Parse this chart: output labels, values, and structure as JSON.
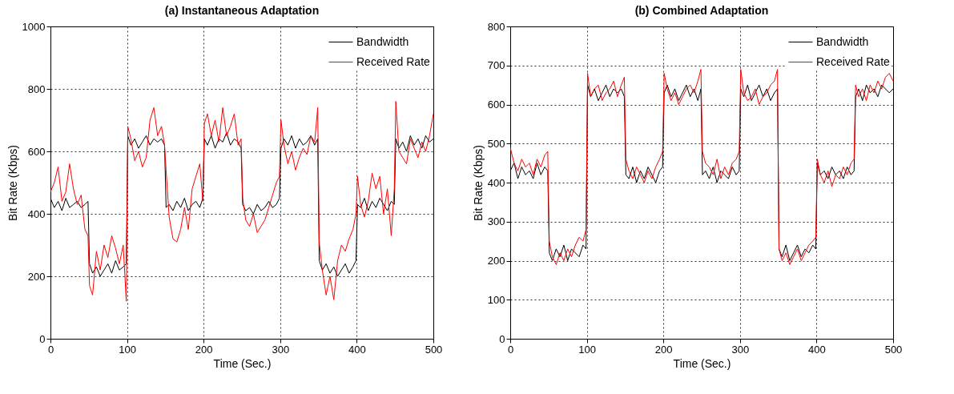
{
  "chart_data": [
    {
      "type": "line",
      "title": "(a) Instantaneous Adaptation",
      "xlabel": "Time (Sec.)",
      "ylabel": "Bit Rate (Kbps)",
      "xlim": [
        0,
        500
      ],
      "xticks": [
        0,
        100,
        200,
        300,
        400,
        500
      ],
      "ylim": [
        0,
        1000
      ],
      "yticks": [
        0,
        200,
        400,
        600,
        800,
        1000
      ],
      "grid": true,
      "legend": "top right",
      "x": [
        0,
        5,
        10,
        15,
        20,
        25,
        30,
        35,
        40,
        45,
        49,
        51,
        55,
        60,
        65,
        70,
        75,
        80,
        85,
        90,
        95,
        99,
        101,
        105,
        110,
        115,
        120,
        125,
        130,
        135,
        140,
        145,
        149,
        151,
        155,
        160,
        165,
        170,
        175,
        180,
        185,
        190,
        195,
        199,
        201,
        205,
        210,
        215,
        220,
        225,
        230,
        235,
        240,
        245,
        249,
        251,
        255,
        260,
        265,
        270,
        275,
        280,
        285,
        290,
        295,
        299,
        301,
        305,
        310,
        315,
        320,
        325,
        330,
        335,
        340,
        345,
        349,
        351,
        355,
        360,
        365,
        370,
        375,
        380,
        385,
        390,
        395,
        399,
        401,
        405,
        410,
        415,
        420,
        425,
        430,
        435,
        440,
        445,
        449,
        451,
        455,
        460,
        465,
        470,
        475,
        480,
        485,
        490,
        495,
        500
      ],
      "series": [
        {
          "name": "Bandwidth",
          "color": "#000000",
          "values": [
            450,
            420,
            440,
            410,
            450,
            420,
            430,
            440,
            420,
            430,
            440,
            240,
            210,
            230,
            200,
            220,
            240,
            210,
            250,
            220,
            230,
            240,
            650,
            620,
            640,
            610,
            630,
            650,
            620,
            640,
            630,
            640,
            620,
            420,
            430,
            410,
            440,
            420,
            450,
            410,
            430,
            440,
            420,
            450,
            640,
            620,
            650,
            610,
            640,
            630,
            660,
            620,
            640,
            630,
            610,
            430,
            410,
            420,
            400,
            430,
            410,
            420,
            440,
            420,
            430,
            450,
            610,
            640,
            620,
            650,
            610,
            640,
            620,
            630,
            650,
            620,
            640,
            250,
            220,
            240,
            210,
            230,
            200,
            220,
            240,
            210,
            230,
            250,
            430,
            420,
            450,
            410,
            440,
            420,
            450,
            430,
            410,
            440,
            430,
            640,
            610,
            630,
            600,
            650,
            620,
            640,
            610,
            650,
            630,
            640
          ]
        },
        {
          "name": "Received Rate",
          "color": "#ff0000",
          "values": [
            470,
            500,
            550,
            440,
            470,
            560,
            480,
            430,
            460,
            350,
            330,
            170,
            140,
            280,
            220,
            300,
            260,
            330,
            290,
            240,
            300,
            120,
            680,
            640,
            570,
            600,
            550,
            580,
            700,
            740,
            650,
            680,
            620,
            540,
            390,
            320,
            310,
            350,
            420,
            350,
            480,
            520,
            560,
            440,
            690,
            720,
            650,
            700,
            630,
            740,
            650,
            680,
            720,
            620,
            640,
            450,
            380,
            360,
            400,
            340,
            360,
            380,
            420,
            460,
            500,
            520,
            700,
            620,
            560,
            600,
            540,
            580,
            610,
            590,
            650,
            630,
            740,
            310,
            220,
            140,
            200,
            125,
            250,
            300,
            280,
            320,
            350,
            400,
            520,
            430,
            390,
            440,
            530,
            480,
            520,
            400,
            480,
            330,
            480,
            760,
            600,
            580,
            560,
            640,
            610,
            580,
            630,
            600,
            650,
            720
          ]
        }
      ]
    },
    {
      "type": "line",
      "title": "(b) Combined Adaptation",
      "xlabel": "Time (Sec.)",
      "ylabel": "Bit Rate (Kbps)",
      "xlim": [
        0,
        500
      ],
      "xticks": [
        0,
        100,
        200,
        300,
        400,
        500
      ],
      "ylim": [
        0,
        800
      ],
      "yticks": [
        0,
        100,
        200,
        300,
        400,
        500,
        600,
        700,
        800
      ],
      "grid": true,
      "legend": "top right",
      "x": [
        0,
        5,
        10,
        15,
        20,
        25,
        30,
        35,
        40,
        45,
        49,
        51,
        55,
        60,
        65,
        70,
        75,
        80,
        85,
        90,
        95,
        99,
        101,
        105,
        110,
        115,
        120,
        125,
        130,
        135,
        140,
        145,
        149,
        151,
        155,
        160,
        165,
        170,
        175,
        180,
        185,
        190,
        195,
        199,
        201,
        205,
        210,
        215,
        220,
        225,
        230,
        235,
        240,
        245,
        249,
        251,
        255,
        260,
        265,
        270,
        275,
        280,
        285,
        290,
        295,
        299,
        301,
        305,
        310,
        315,
        320,
        325,
        330,
        335,
        340,
        345,
        349,
        351,
        355,
        360,
        365,
        370,
        375,
        380,
        385,
        390,
        395,
        399,
        401,
        405,
        410,
        415,
        420,
        425,
        430,
        435,
        440,
        445,
        449,
        451,
        455,
        460,
        465,
        470,
        475,
        480,
        485,
        490,
        495,
        500
      ],
      "series": [
        {
          "name": "Bandwidth",
          "color": "#000000",
          "values": [
            430,
            450,
            410,
            440,
            420,
            430,
            410,
            450,
            420,
            440,
            430,
            220,
            200,
            230,
            210,
            240,
            200,
            230,
            220,
            210,
            240,
            230,
            650,
            620,
            640,
            610,
            630,
            650,
            620,
            640,
            630,
            640,
            620,
            420,
            410,
            440,
            400,
            430,
            410,
            440,
            420,
            400,
            430,
            440,
            630,
            650,
            620,
            640,
            610,
            630,
            650,
            620,
            640,
            610,
            640,
            420,
            430,
            410,
            440,
            400,
            430,
            420,
            410,
            440,
            420,
            430,
            640,
            620,
            650,
            610,
            630,
            650,
            620,
            640,
            610,
            630,
            640,
            230,
            210,
            240,
            200,
            220,
            240,
            210,
            230,
            220,
            240,
            230,
            450,
            420,
            430,
            410,
            440,
            420,
            430,
            410,
            440,
            420,
            430,
            620,
            640,
            610,
            650,
            630,
            640,
            620,
            650,
            640,
            630,
            640
          ]
        },
        {
          "name": "Received Rate",
          "color": "#ff0000",
          "values": [
            490,
            450,
            430,
            460,
            440,
            450,
            420,
            460,
            440,
            470,
            480,
            250,
            210,
            190,
            220,
            200,
            230,
            210,
            240,
            260,
            250,
            280,
            680,
            620,
            640,
            650,
            610,
            630,
            640,
            660,
            620,
            650,
            670,
            460,
            430,
            410,
            440,
            420,
            400,
            430,
            410,
            440,
            460,
            480,
            680,
            640,
            610,
            630,
            600,
            620,
            640,
            650,
            630,
            660,
            690,
            480,
            450,
            440,
            420,
            460,
            410,
            440,
            420,
            450,
            460,
            480,
            690,
            630,
            610,
            620,
            640,
            600,
            620,
            630,
            650,
            660,
            690,
            230,
            200,
            220,
            190,
            210,
            230,
            200,
            220,
            240,
            250,
            260,
            460,
            420,
            400,
            430,
            390,
            420,
            410,
            440,
            420,
            450,
            460,
            650,
            620,
            640,
            610,
            650,
            630,
            660,
            640,
            670,
            680,
            660
          ]
        }
      ]
    }
  ]
}
